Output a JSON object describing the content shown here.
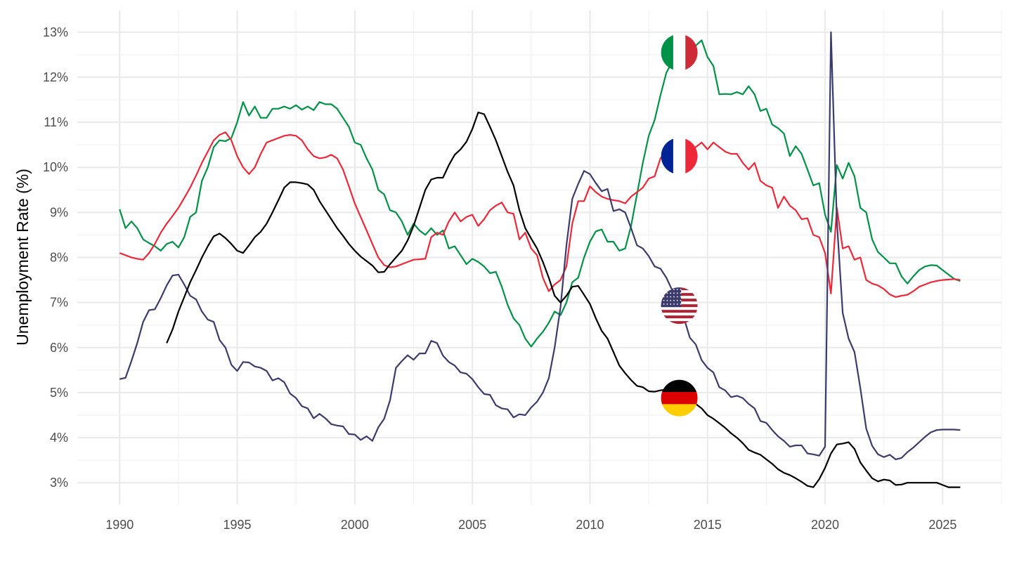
{
  "chart_data": {
    "type": "line",
    "title": "",
    "xlabel": "",
    "ylabel": "Unemployment Rate (%)",
    "xlim": [
      1988.2,
      2027.5
    ],
    "ylim": [
      2.52,
      13.48
    ],
    "grid": true,
    "x_ticks": [
      1990,
      1995,
      2000,
      2005,
      2010,
      2015,
      2020,
      2025
    ],
    "x_tick_labels": [
      "1990",
      "1995",
      "2000",
      "2005",
      "2010",
      "2015",
      "2020",
      "2025"
    ],
    "y_ticks": [
      3,
      4,
      5,
      6,
      7,
      8,
      9,
      10,
      11,
      12,
      13
    ],
    "y_tick_labels": [
      "3%",
      "4%",
      "5%",
      "6%",
      "7%",
      "8%",
      "9%",
      "10%",
      "11%",
      "12%",
      "13%"
    ],
    "legend": "flag markers on lines",
    "marker_x": 2013.8,
    "series": [
      {
        "name": "Italy",
        "color": "#009246",
        "flag": "italy-flag",
        "marker_y": 12.55,
        "start": 1990,
        "step": 0.25,
        "values": [
          9.07,
          8.65,
          8.8,
          8.65,
          8.4,
          8.32,
          8.25,
          8.15,
          8.3,
          8.35,
          8.22,
          8.45,
          8.9,
          9.0,
          9.7,
          10.0,
          10.45,
          10.6,
          10.58,
          10.65,
          11.0,
          11.45,
          11.15,
          11.35,
          11.1,
          11.1,
          11.3,
          11.3,
          11.35,
          11.3,
          11.38,
          11.28,
          11.35,
          11.27,
          11.45,
          11.4,
          11.4,
          11.3,
          11.1,
          10.9,
          10.55,
          10.5,
          10.2,
          9.95,
          9.5,
          9.4,
          9.05,
          9.0,
          8.8,
          8.5,
          8.75,
          8.6,
          8.5,
          8.65,
          8.5,
          8.6,
          8.2,
          8.25,
          8.05,
          7.85,
          7.97,
          7.9,
          7.8,
          7.65,
          7.68,
          7.35,
          6.95,
          6.65,
          6.5,
          6.2,
          6.02,
          6.2,
          6.35,
          6.55,
          6.8,
          6.72,
          7.0,
          7.45,
          7.55,
          8.0,
          8.35,
          8.58,
          8.62,
          8.35,
          8.35,
          8.15,
          8.2,
          8.7,
          9.4,
          10.1,
          10.7,
          11.05,
          11.6,
          12.1,
          12.35,
          12.5,
          12.55,
          12.6,
          12.7,
          12.82,
          12.45,
          12.25,
          11.62,
          11.63,
          11.62,
          11.67,
          11.62,
          11.8,
          11.62,
          11.25,
          11.3,
          10.95,
          10.87,
          10.75,
          10.25,
          10.47,
          10.3,
          9.95,
          9.6,
          9.65,
          8.95,
          8.57,
          10.05,
          9.75,
          10.1,
          9.8,
          9.1,
          9.0,
          8.4,
          8.12,
          8.0,
          7.87,
          7.87,
          7.58,
          7.42,
          7.58,
          7.72,
          7.8,
          7.83,
          7.82,
          7.72,
          7.62,
          7.52,
          7.48
        ]
      },
      {
        "name": "France",
        "color": "#ED2939",
        "flag": "france-flag",
        "marker_y": 10.25,
        "start": 1990,
        "step": 0.25,
        "values": [
          8.1,
          8.05,
          8.0,
          7.97,
          7.95,
          8.1,
          8.3,
          8.55,
          8.75,
          8.92,
          9.1,
          9.32,
          9.55,
          9.82,
          10.1,
          10.35,
          10.6,
          10.72,
          10.78,
          10.6,
          10.25,
          10.0,
          9.85,
          10.0,
          10.3,
          10.55,
          10.6,
          10.65,
          10.7,
          10.72,
          10.7,
          10.6,
          10.4,
          10.25,
          10.2,
          10.22,
          10.28,
          10.2,
          9.95,
          9.58,
          9.2,
          8.9,
          8.6,
          8.3,
          8.0,
          7.83,
          7.78,
          7.8,
          7.85,
          7.9,
          7.95,
          7.96,
          7.97,
          8.45,
          8.55,
          8.5,
          8.8,
          9.0,
          8.8,
          8.9,
          8.95,
          8.7,
          8.85,
          9.05,
          9.15,
          9.22,
          9.0,
          8.97,
          8.4,
          8.55,
          8.2,
          8.05,
          7.55,
          7.25,
          7.4,
          7.5,
          7.8,
          8.75,
          9.25,
          9.25,
          9.58,
          9.45,
          9.35,
          9.3,
          9.27,
          9.25,
          9.2,
          9.35,
          9.45,
          9.55,
          9.75,
          9.8,
          10.2,
          10.35,
          10.4,
          10.42,
          10.45,
          10.42,
          10.45,
          10.55,
          10.4,
          10.55,
          10.45,
          10.35,
          10.3,
          10.3,
          10.1,
          9.95,
          10.1,
          9.7,
          9.6,
          9.55,
          9.1,
          9.35,
          9.15,
          9.05,
          8.85,
          8.87,
          8.5,
          8.45,
          8.1,
          7.2,
          9.1,
          8.2,
          8.25,
          7.95,
          8.0,
          7.5,
          7.42,
          7.38,
          7.3,
          7.18,
          7.12,
          7.15,
          7.17,
          7.25,
          7.35,
          7.4,
          7.45,
          7.48,
          7.5,
          7.51,
          7.52,
          7.5
        ]
      },
      {
        "name": "United States",
        "color": "#3C3B6E",
        "flag": "usa-flag",
        "marker_y": 6.93,
        "start": 1990,
        "step": 0.25,
        "values": [
          5.3,
          5.33,
          5.7,
          6.1,
          6.57,
          6.83,
          6.85,
          7.1,
          7.38,
          7.6,
          7.62,
          7.4,
          7.15,
          7.07,
          6.8,
          6.62,
          6.57,
          6.17,
          6.0,
          5.62,
          5.48,
          5.68,
          5.67,
          5.58,
          5.55,
          5.48,
          5.27,
          5.32,
          5.23,
          4.98,
          4.88,
          4.7,
          4.65,
          4.43,
          4.53,
          4.43,
          4.3,
          4.27,
          4.25,
          4.08,
          4.07,
          3.95,
          4.03,
          3.93,
          4.23,
          4.42,
          4.83,
          5.55,
          5.7,
          5.83,
          5.73,
          5.87,
          5.87,
          6.15,
          6.1,
          5.82,
          5.68,
          5.6,
          5.45,
          5.42,
          5.3,
          5.12,
          4.97,
          4.95,
          4.72,
          4.65,
          4.63,
          4.45,
          4.52,
          4.5,
          4.67,
          4.8,
          5.0,
          5.32,
          6.0,
          6.9,
          8.27,
          9.3,
          9.63,
          9.92,
          9.85,
          9.65,
          9.47,
          9.52,
          9.03,
          9.07,
          9.0,
          8.65,
          8.27,
          8.2,
          8.03,
          7.8,
          7.75,
          7.55,
          7.27,
          7.0,
          6.65,
          6.22,
          6.07,
          5.72,
          5.55,
          5.45,
          5.12,
          5.05,
          4.9,
          4.93,
          4.88,
          4.75,
          4.65,
          4.37,
          4.33,
          4.17,
          4.03,
          3.93,
          3.8,
          3.83,
          3.83,
          3.65,
          3.63,
          3.6,
          3.8,
          13.0,
          8.8,
          6.77,
          6.2,
          5.9,
          5.1,
          4.2,
          3.82,
          3.63,
          3.57,
          3.62,
          3.52,
          3.55,
          3.68,
          3.78,
          3.9,
          4.02,
          4.12,
          4.17,
          4.18,
          4.18,
          4.18,
          4.17
        ]
      },
      {
        "name": "Germany",
        "color": "#000000",
        "flag": "germany-flag",
        "marker_y": 4.88,
        "start": 1992,
        "step": 0.25,
        "values": [
          6.1,
          6.4,
          6.8,
          7.12,
          7.45,
          7.72,
          8.0,
          8.25,
          8.47,
          8.53,
          8.43,
          8.3,
          8.15,
          8.1,
          8.27,
          8.45,
          8.57,
          8.75,
          9.0,
          9.27,
          9.55,
          9.67,
          9.67,
          9.65,
          9.62,
          9.5,
          9.25,
          9.05,
          8.85,
          8.65,
          8.48,
          8.3,
          8.15,
          8.02,
          7.92,
          7.82,
          7.67,
          7.68,
          7.85,
          8.0,
          8.15,
          8.38,
          8.7,
          9.1,
          9.5,
          9.73,
          9.77,
          9.77,
          10.05,
          10.28,
          10.4,
          10.57,
          10.85,
          11.22,
          11.18,
          10.9,
          10.6,
          10.25,
          9.9,
          9.6,
          9.05,
          8.65,
          8.42,
          8.2,
          7.9,
          7.55,
          7.15,
          7.0,
          7.15,
          7.35,
          7.37,
          7.17,
          6.97,
          6.65,
          6.37,
          6.2,
          5.9,
          5.6,
          5.43,
          5.28,
          5.15,
          5.12,
          5.03,
          5.02,
          5.05,
          5.07,
          5.0,
          4.95,
          4.9,
          4.85,
          4.75,
          4.65,
          4.5,
          4.42,
          4.32,
          4.22,
          4.1,
          4.0,
          3.88,
          3.73,
          3.67,
          3.62,
          3.52,
          3.42,
          3.3,
          3.22,
          3.17,
          3.1,
          3.02,
          2.93,
          2.9,
          3.08,
          3.33,
          3.65,
          3.85,
          3.87,
          3.9,
          3.75,
          3.45,
          3.27,
          3.1,
          3.03,
          3.07,
          3.05,
          2.95,
          2.96,
          3.0,
          3.0,
          3.0,
          3.0,
          3.0,
          3.0,
          2.95,
          2.9,
          2.9,
          2.9
        ]
      }
    ]
  }
}
